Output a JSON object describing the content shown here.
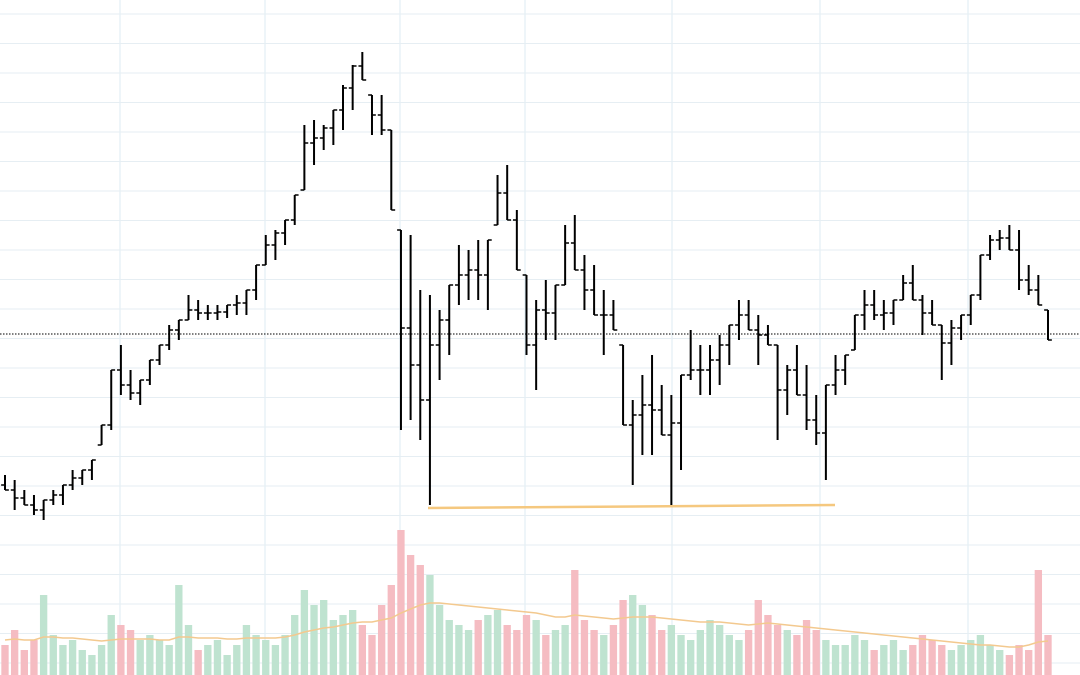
{
  "chart_data": {
    "type": "ohlc",
    "color": "#000000",
    "ylim": [
      0,
      675
    ],
    "open": [
      190,
      185,
      177,
      170,
      165,
      175,
      180,
      190,
      197,
      205,
      230,
      250,
      305,
      290,
      282,
      295,
      315,
      330,
      345,
      355,
      365,
      362,
      362,
      363,
      370,
      372,
      385,
      410,
      430,
      442,
      455,
      485,
      532,
      537,
      547,
      565,
      587,
      609,
      580,
      560,
      545,
      445,
      347,
      310,
      275,
      330,
      355,
      390,
      400,
      405,
      400,
      450,
      482,
      455,
      400,
      330,
      365,
      362,
      390,
      432,
      405,
      385,
      360,
      360,
      330,
      250,
      260,
      270,
      265,
      240,
      252,
      300,
      305,
      305,
      315,
      330,
      350,
      360,
      345,
      340,
      330,
      285,
      305,
      280,
      255,
      242,
      290,
      305,
      325,
      360,
      370,
      360,
      362,
      375,
      392,
      375,
      362,
      350,
      332,
      347,
      360,
      380,
      420,
      435,
      437,
      425,
      395,
      385,
      365
    ],
    "high": [
      200,
      195,
      185,
      180,
      175,
      185,
      190,
      205,
      205,
      215,
      250,
      305,
      330,
      305,
      295,
      315,
      330,
      350,
      355,
      380,
      375,
      370,
      370,
      370,
      380,
      385,
      410,
      440,
      445,
      455,
      480,
      550,
      555,
      550,
      565,
      590,
      610,
      623,
      580,
      580,
      545,
      445,
      440,
      385,
      380,
      365,
      390,
      430,
      425,
      435,
      435,
      500,
      510,
      465,
      400,
      375,
      395,
      390,
      450,
      460,
      420,
      410,
      385,
      375,
      330,
      275,
      300,
      320,
      290,
      280,
      300,
      345,
      330,
      330,
      340,
      350,
      375,
      375,
      360,
      350,
      330,
      310,
      330,
      310,
      280,
      290,
      320,
      320,
      360,
      385,
      385,
      375,
      375,
      400,
      410,
      380,
      375,
      350,
      355,
      360,
      380,
      420,
      440,
      445,
      450,
      445,
      410,
      400,
      365
    ],
    "low": [
      185,
      165,
      170,
      160,
      155,
      170,
      170,
      185,
      190,
      195,
      230,
      245,
      280,
      275,
      270,
      290,
      310,
      325,
      335,
      355,
      355,
      355,
      355,
      357,
      360,
      360,
      375,
      410,
      415,
      430,
      450,
      485,
      510,
      525,
      530,
      545,
      565,
      595,
      540,
      540,
      465,
      245,
      255,
      235,
      170,
      295,
      320,
      370,
      375,
      375,
      365,
      450,
      455,
      405,
      320,
      285,
      335,
      335,
      390,
      405,
      365,
      360,
      320,
      345,
      250,
      190,
      220,
      220,
      240,
      170,
      205,
      295,
      280,
      280,
      290,
      310,
      335,
      345,
      310,
      330,
      235,
      260,
      280,
      245,
      230,
      195,
      280,
      290,
      325,
      345,
      355,
      345,
      350,
      375,
      375,
      340,
      350,
      295,
      310,
      335,
      350,
      375,
      415,
      425,
      425,
      385,
      380,
      370,
      335
    ],
    "close": [
      185,
      177,
      170,
      165,
      175,
      180,
      190,
      197,
      205,
      215,
      250,
      305,
      290,
      282,
      295,
      315,
      330,
      345,
      355,
      365,
      362,
      362,
      363,
      370,
      372,
      385,
      410,
      430,
      442,
      455,
      480,
      532,
      537,
      547,
      565,
      587,
      609,
      595,
      560,
      545,
      465,
      347,
      310,
      275,
      330,
      355,
      390,
      400,
      405,
      400,
      435,
      482,
      455,
      405,
      330,
      365,
      362,
      390,
      432,
      405,
      385,
      360,
      360,
      345,
      250,
      260,
      270,
      265,
      240,
      252,
      300,
      305,
      305,
      315,
      330,
      350,
      360,
      345,
      340,
      330,
      285,
      305,
      280,
      255,
      242,
      290,
      305,
      320,
      360,
      370,
      360,
      362,
      375,
      392,
      375,
      362,
      350,
      332,
      347,
      360,
      380,
      420,
      435,
      437,
      425,
      395,
      385,
      370,
      335
    ],
    "reference_line": 341,
    "support_line": {
      "values": [
        167,
        170
      ],
      "color": "#f5c87f"
    },
    "volume": {
      "ylim": [
        0,
        675
      ],
      "color_up": "#bfe3d0",
      "color_down": "#f5bcc2",
      "values": [
        30,
        45,
        25,
        35,
        80,
        40,
        30,
        35,
        25,
        20,
        30,
        60,
        50,
        45,
        35,
        40,
        35,
        30,
        90,
        50,
        25,
        30,
        35,
        20,
        30,
        50,
        40,
        35,
        30,
        40,
        60,
        85,
        70,
        75,
        55,
        60,
        65,
        50,
        40,
        70,
        90,
        145,
        120,
        110,
        100,
        70,
        55,
        50,
        45,
        55,
        60,
        65,
        50,
        45,
        60,
        55,
        40,
        45,
        50,
        105,
        55,
        45,
        40,
        50,
        75,
        80,
        70,
        60,
        45,
        50,
        40,
        35,
        45,
        55,
        50,
        40,
        35,
        45,
        75,
        60,
        50,
        45,
        40,
        55,
        45,
        35,
        30,
        30,
        40,
        35,
        25,
        30,
        35,
        25,
        30,
        40,
        35,
        30,
        25,
        30,
        35,
        40,
        30,
        25,
        20,
        30,
        25,
        105,
        40
      ]
    },
    "volume_ma": {
      "color": "#f3c98f",
      "values": [
        35,
        36,
        35,
        35,
        38,
        38,
        37,
        37,
        36,
        35,
        34,
        35,
        36,
        36,
        36,
        36,
        35,
        35,
        38,
        38,
        37,
        37,
        37,
        36,
        36,
        37,
        37,
        37,
        37,
        38,
        40,
        43,
        45,
        47,
        48,
        50,
        52,
        53,
        53,
        55,
        57,
        62,
        66,
        70,
        72,
        72,
        71,
        70,
        69,
        68,
        67,
        66,
        65,
        64,
        63,
        62,
        60,
        58,
        58,
        60,
        59,
        58,
        57,
        56,
        57,
        58,
        58,
        58,
        57,
        56,
        55,
        54,
        53,
        53,
        53,
        52,
        51,
        50,
        51,
        52,
        51,
        50,
        49,
        48,
        47,
        46,
        45,
        44,
        43,
        42,
        41,
        40,
        39,
        38,
        37,
        36,
        35,
        34,
        33,
        32,
        31,
        30,
        30,
        29,
        28,
        28,
        30,
        33,
        34
      ]
    }
  }
}
